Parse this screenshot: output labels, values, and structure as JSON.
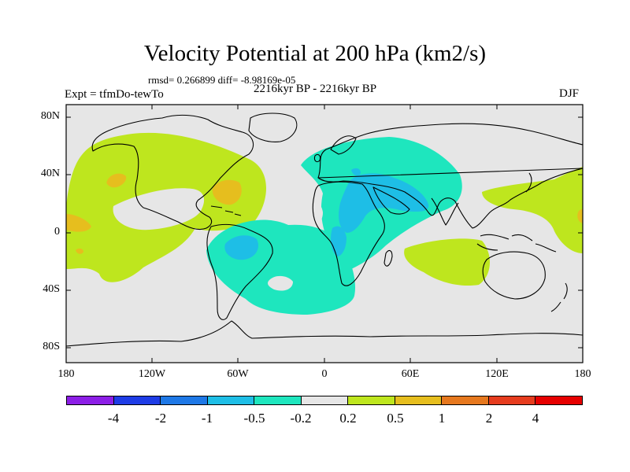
{
  "title": "Velocity Potential at 200 hPa (km2/s)",
  "subtitle_stats": "rmsd= 0.266899 diff= -8.98169e-05",
  "subtitle_left": "Expt = tfmDo-tewTo",
  "subtitle_center": "2216kyr BP - 2216kyr BP",
  "subtitle_right": "DJF",
  "y_axis_labels": [
    "80N",
    "40N",
    "0",
    "40S",
    "80S"
  ],
  "x_axis_labels": [
    "180",
    "120W",
    "60W",
    "0",
    "60E",
    "120E",
    "180"
  ],
  "colorbar": {
    "colors": [
      "#8c1ee6",
      "#1e3ce6",
      "#1e78e6",
      "#1ebee6",
      "#1ee6be",
      "#e6e6e6",
      "#bee61e",
      "#e6be1e",
      "#e6781e",
      "#e63c1e",
      "#e60000"
    ],
    "labels": [
      "-4",
      "-2",
      "-1",
      "-0.5",
      "-0.2",
      "0.2",
      "0.5",
      "1",
      "2",
      "4"
    ]
  }
}
